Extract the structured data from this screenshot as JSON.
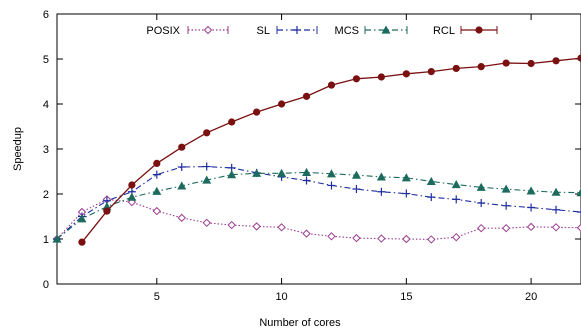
{
  "chart_data": {
    "type": "line",
    "title": "",
    "xlabel": "Number of cores",
    "ylabel": "Speedup",
    "xlim": [
      1,
      22
    ],
    "ylim": [
      0,
      6
    ],
    "xticks": [
      5,
      10,
      15,
      20
    ],
    "yticks": [
      0,
      1,
      2,
      3,
      4,
      5,
      6
    ],
    "grid": false,
    "legend_position": "top",
    "series": [
      {
        "name": "POSIX",
        "color": "#9b3d8e",
        "dash": "dotted",
        "marker": "diamond-open",
        "x": [
          1,
          2,
          3,
          4,
          5,
          6,
          7,
          8,
          9,
          10,
          11,
          12,
          13,
          14,
          15,
          16,
          17,
          18,
          19,
          20,
          21,
          22
        ],
        "y": [
          1.0,
          1.6,
          1.88,
          1.82,
          1.62,
          1.47,
          1.36,
          1.31,
          1.28,
          1.26,
          1.12,
          1.06,
          1.02,
          1.01,
          1.0,
          0.99,
          1.04,
          1.24,
          1.24,
          1.27,
          1.26,
          1.25
        ]
      },
      {
        "name": "SL",
        "color": "#1f2fa0",
        "dash": "dashdot",
        "marker": "plus",
        "x": [
          1,
          2,
          3,
          4,
          5,
          6,
          7,
          8,
          9,
          10,
          11,
          12,
          13,
          14,
          15,
          16,
          17,
          18,
          19,
          20,
          21,
          22
        ],
        "y": [
          1.0,
          1.5,
          1.85,
          2.05,
          2.43,
          2.6,
          2.61,
          2.58,
          2.47,
          2.38,
          2.3,
          2.19,
          2.11,
          2.05,
          2.01,
          1.93,
          1.88,
          1.8,
          1.74,
          1.7,
          1.65,
          1.6
        ]
      },
      {
        "name": "MCS",
        "color": "#1d6b5e",
        "dash": "dashdot",
        "marker": "triangle",
        "x": [
          1,
          2,
          3,
          4,
          5,
          6,
          7,
          8,
          9,
          10,
          11,
          12,
          13,
          14,
          15,
          16,
          17,
          18,
          19,
          20,
          21,
          22
        ],
        "y": [
          1.0,
          1.45,
          1.72,
          1.93,
          2.06,
          2.18,
          2.31,
          2.43,
          2.46,
          2.46,
          2.48,
          2.45,
          2.42,
          2.38,
          2.36,
          2.28,
          2.21,
          2.15,
          2.11,
          2.07,
          2.04,
          2.03
        ]
      },
      {
        "name": "RCL",
        "color": "#7a1010",
        "dash": "solid",
        "marker": "circle",
        "x": [
          2,
          3,
          4,
          5,
          6,
          7,
          8,
          9,
          10,
          11,
          12,
          13,
          14,
          15,
          16,
          17,
          18,
          19,
          20,
          21,
          22
        ],
        "y": [
          0.93,
          1.62,
          2.2,
          2.68,
          3.04,
          3.36,
          3.6,
          3.82,
          4.0,
          4.17,
          4.42,
          4.56,
          4.6,
          4.67,
          4.72,
          4.79,
          4.83,
          4.91,
          4.9,
          4.96,
          5.02
        ]
      }
    ]
  }
}
